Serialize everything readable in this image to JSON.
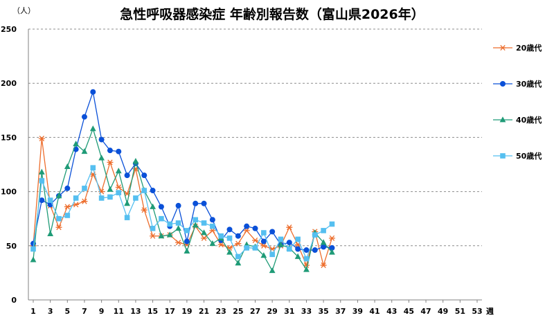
{
  "chart_data": {
    "type": "line",
    "title": "急性呼吸器感染症 年齢別報告数（富山県2026年）",
    "ylabel": "（人）",
    "xlabel": "週",
    "ylim": [
      0,
      250
    ],
    "yticks": [
      0,
      50,
      100,
      150,
      200,
      250
    ],
    "xlim": [
      1,
      53
    ],
    "xticks": [
      1,
      3,
      5,
      7,
      9,
      11,
      13,
      15,
      17,
      19,
      21,
      23,
      25,
      27,
      29,
      31,
      33,
      35,
      37,
      39,
      41,
      43,
      45,
      47,
      49,
      51,
      53
    ],
    "grid": "horizontal dashed",
    "legend_position": "right",
    "series": [
      {
        "name": "20歳代",
        "color": "#ED6D2C",
        "marker": "star",
        "values": [
          50,
          149,
          87,
          67,
          86,
          88,
          91,
          116,
          100,
          127,
          104,
          98,
          121,
          83,
          59,
          59,
          60,
          53,
          51,
          68,
          57,
          64,
          51,
          48,
          52,
          64,
          55,
          50,
          47,
          50,
          67,
          51,
          32,
          63,
          32,
          57
        ]
      },
      {
        "name": "30歳代",
        "color": "#0A50D8",
        "marker": "circle",
        "values": [
          52,
          92,
          88,
          96,
          103,
          139,
          169,
          192,
          148,
          138,
          137,
          115,
          126,
          115,
          101,
          86,
          68,
          87,
          54,
          89,
          89,
          74,
          55,
          65,
          59,
          68,
          66,
          54,
          63,
          51,
          53,
          47,
          46,
          46,
          49,
          48
        ]
      },
      {
        "name": "40歳代",
        "color": "#1F9B77",
        "marker": "triangle",
        "values": [
          37,
          118,
          61,
          96,
          123,
          144,
          137,
          158,
          131,
          102,
          119,
          89,
          128,
          101,
          86,
          59,
          60,
          66,
          45,
          69,
          62,
          52,
          57,
          44,
          34,
          51,
          49,
          41,
          27,
          51,
          48,
          40,
          28,
          62,
          53,
          44
        ]
      },
      {
        "name": "50歳代",
        "color": "#55BFF0",
        "marker": "square",
        "values": [
          47,
          110,
          92,
          75,
          78,
          94,
          103,
          122,
          94,
          95,
          99,
          76,
          94,
          101,
          66,
          75,
          70,
          71,
          64,
          74,
          71,
          68,
          59,
          57,
          40,
          48,
          48,
          62,
          42,
          56,
          47,
          56,
          38,
          60,
          64,
          70
        ]
      }
    ]
  }
}
